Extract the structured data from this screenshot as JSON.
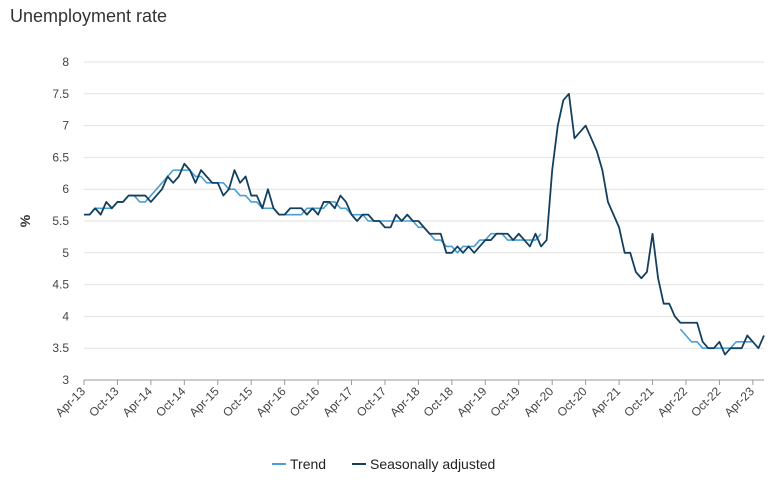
{
  "chart_data": {
    "type": "line",
    "title": "Unemployment rate",
    "xlabel": "",
    "ylabel": "%",
    "ylim": [
      3,
      8
    ],
    "yticks": [
      "3",
      "3.5",
      "4",
      "4.5",
      "5",
      "5.5",
      "6",
      "6.5",
      "7",
      "7.5",
      "8"
    ],
    "grid": "horizontal",
    "legend": "bottom-center",
    "start_month": "Apr-13",
    "x_tick_labels": [
      "Apr-13",
      "Oct-13",
      "Apr-14",
      "Oct-14",
      "Apr-15",
      "Oct-15",
      "Apr-16",
      "Oct-16",
      "Apr-17",
      "Oct-17",
      "Apr-18",
      "Oct-18",
      "Apr-19",
      "Oct-19",
      "Apr-20",
      "Oct-20",
      "Apr-21",
      "Oct-21",
      "Apr-22",
      "Oct-22",
      "Apr-23"
    ],
    "series": [
      {
        "name": "Trend",
        "color": "#4a9fd4",
        "values": [
          5.6,
          5.6,
          5.7,
          5.7,
          5.7,
          5.7,
          5.8,
          5.8,
          5.9,
          5.9,
          5.8,
          5.8,
          5.9,
          6.0,
          6.1,
          6.2,
          6.3,
          6.3,
          6.3,
          6.3,
          6.2,
          6.2,
          6.1,
          6.1,
          6.1,
          6.1,
          6.0,
          6.0,
          5.9,
          5.9,
          5.8,
          5.8,
          5.7,
          5.7,
          5.7,
          5.6,
          5.6,
          5.6,
          5.6,
          5.6,
          5.7,
          5.7,
          5.7,
          5.7,
          5.8,
          5.8,
          5.7,
          5.7,
          5.6,
          5.6,
          5.6,
          5.5,
          5.5,
          5.5,
          5.5,
          5.5,
          5.5,
          5.5,
          5.5,
          5.5,
          5.4,
          5.4,
          5.3,
          5.2,
          5.2,
          5.1,
          5.1,
          5.0,
          5.1,
          5.1,
          5.1,
          5.2,
          5.2,
          5.3,
          5.3,
          5.3,
          5.2,
          5.2,
          5.2,
          5.2,
          5.2,
          5.2,
          5.3,
          null,
          null,
          null,
          null,
          null,
          null,
          null,
          null,
          null,
          null,
          null,
          null,
          null,
          null,
          null,
          null,
          null,
          null,
          null,
          null,
          null,
          null,
          null,
          null,
          3.8,
          3.7,
          3.6,
          3.6,
          3.5,
          3.5,
          3.5,
          3.5,
          3.5,
          3.5,
          3.6,
          3.6,
          3.6,
          3.6
        ]
      },
      {
        "name": "Seasonally adjusted",
        "color": "#14405e",
        "values": [
          5.6,
          5.6,
          5.7,
          5.6,
          5.8,
          5.7,
          5.8,
          5.8,
          5.9,
          5.9,
          5.9,
          5.9,
          5.8,
          5.9,
          6.0,
          6.2,
          6.1,
          6.2,
          6.4,
          6.3,
          6.1,
          6.3,
          6.2,
          6.1,
          6.1,
          5.9,
          6.0,
          6.3,
          6.1,
          6.2,
          5.9,
          5.9,
          5.7,
          6.0,
          5.7,
          5.6,
          5.6,
          5.7,
          5.7,
          5.7,
          5.6,
          5.7,
          5.6,
          5.8,
          5.8,
          5.7,
          5.9,
          5.8,
          5.6,
          5.5,
          5.6,
          5.6,
          5.5,
          5.5,
          5.4,
          5.4,
          5.6,
          5.5,
          5.6,
          5.5,
          5.5,
          5.4,
          5.3,
          5.3,
          5.3,
          5.0,
          5.0,
          5.1,
          5.0,
          5.1,
          5.0,
          5.1,
          5.2,
          5.2,
          5.3,
          5.3,
          5.3,
          5.2,
          5.3,
          5.2,
          5.1,
          5.3,
          5.1,
          5.2,
          6.3,
          7.0,
          7.4,
          7.5,
          6.8,
          6.9,
          7.0,
          6.8,
          6.6,
          6.3,
          5.8,
          5.6,
          5.4,
          5.0,
          5.0,
          4.7,
          4.6,
          4.7,
          5.3,
          4.6,
          4.2,
          4.2,
          4.0,
          3.9,
          3.9,
          3.9,
          3.9,
          3.6,
          3.5,
          3.5,
          3.6,
          3.4,
          3.5,
          3.5,
          3.5,
          3.7,
          3.6,
          3.5,
          3.7
        ]
      }
    ]
  }
}
